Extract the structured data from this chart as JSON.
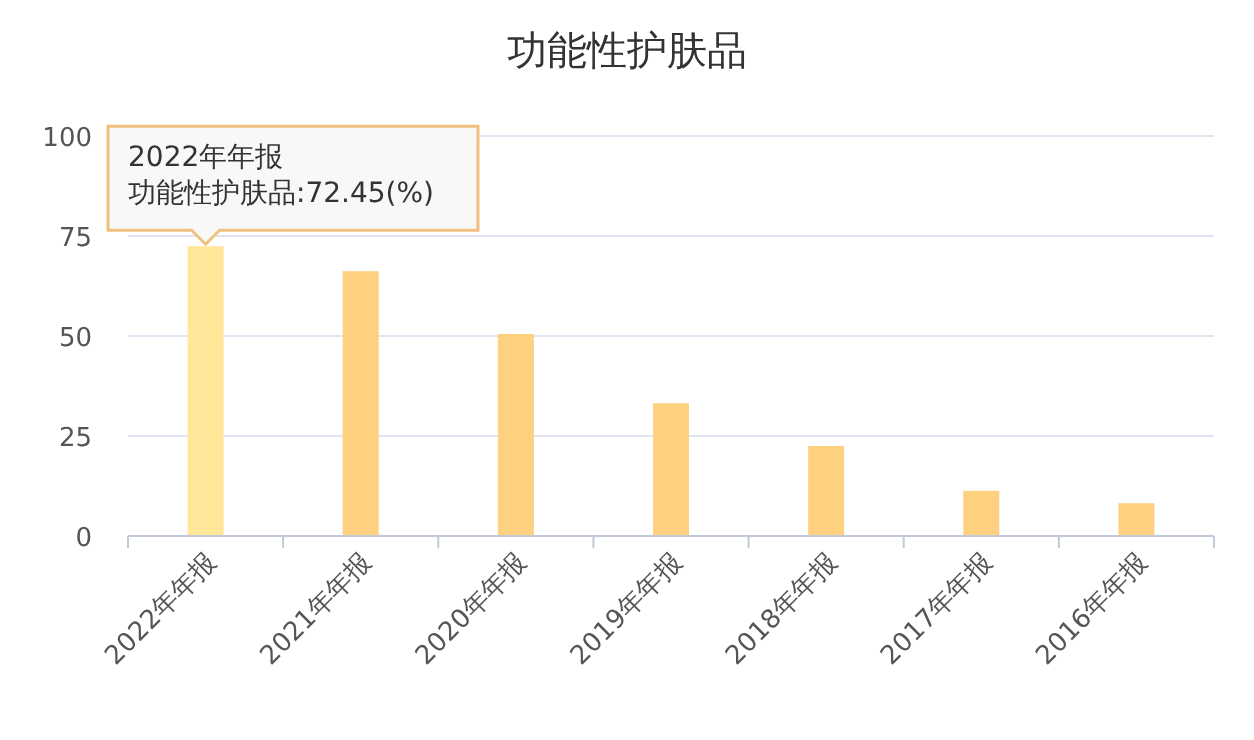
{
  "chart_data": {
    "type": "bar",
    "title": "功能性护肤品",
    "categories": [
      "2022年年报",
      "2021年年报",
      "2020年年报",
      "2019年年报",
      "2018年年报",
      "2017年年报",
      "2016年年报"
    ],
    "values": [
      72.45,
      66.2,
      50.5,
      33.2,
      22.5,
      11.3,
      8.2
    ],
    "colors": [
      "#ffe699",
      "#fdd17f",
      "#fdd17f",
      "#fdd17f",
      "#fdd17f",
      "#fdd17f",
      "#fdd17f"
    ],
    "ylim": [
      0,
      100
    ],
    "yticks": [
      0,
      25,
      50,
      75,
      100
    ],
    "grid": "y",
    "annotations": [
      {
        "text": "2022年年报",
        "x": "2022年年报",
        "y": 72.45
      },
      {
        "text": "功能性护肤品:72.45(%)",
        "x": "2022年年报",
        "y": 72.45
      }
    ]
  }
}
